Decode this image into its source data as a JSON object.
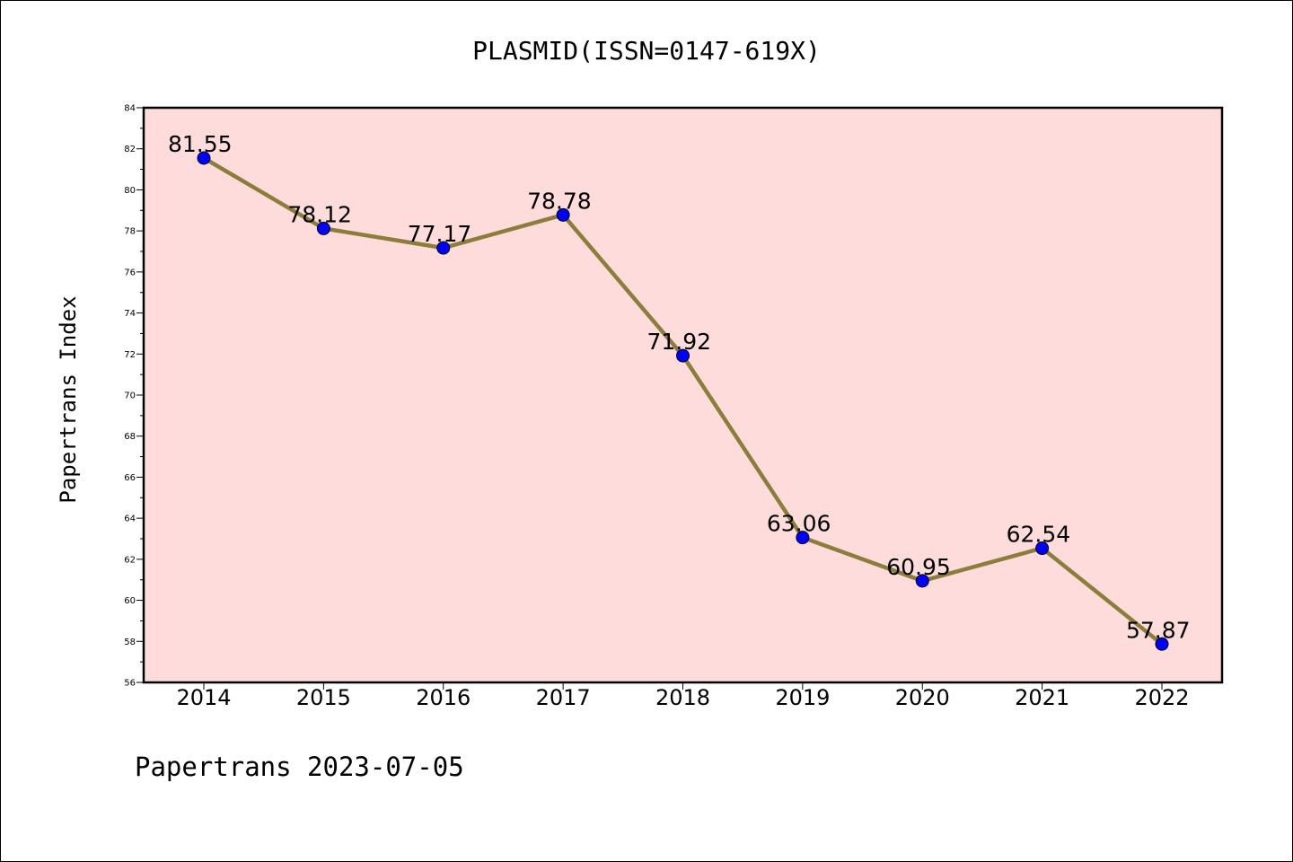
{
  "chart_data": {
    "type": "line",
    "title": "PLASMID(ISSN=0147-619X)",
    "ylabel": "Papertrans Index",
    "xlabel": "",
    "footer": "Papertrans 2023-07-05",
    "x": [
      "2014",
      "2015",
      "2016",
      "2017",
      "2018",
      "2019",
      "2020",
      "2021",
      "2022"
    ],
    "values": [
      81.55,
      78.12,
      77.17,
      78.78,
      71.92,
      63.06,
      60.95,
      62.54,
      57.87
    ],
    "value_labels": [
      "81.55",
      "78.12",
      "77.17",
      "78.78",
      "71.92",
      "63.06",
      "60.95",
      "62.54",
      "57.87"
    ],
    "ylim": [
      56,
      84
    ],
    "yticks": [
      56,
      58,
      60,
      62,
      64,
      66,
      68,
      70,
      72,
      74,
      76,
      78,
      80,
      82,
      84
    ],
    "grid": false,
    "legend": "none",
    "colors": {
      "plot_background": "#ffdcdc",
      "line": "#8b7d3a",
      "marker": "#0000ff"
    }
  }
}
